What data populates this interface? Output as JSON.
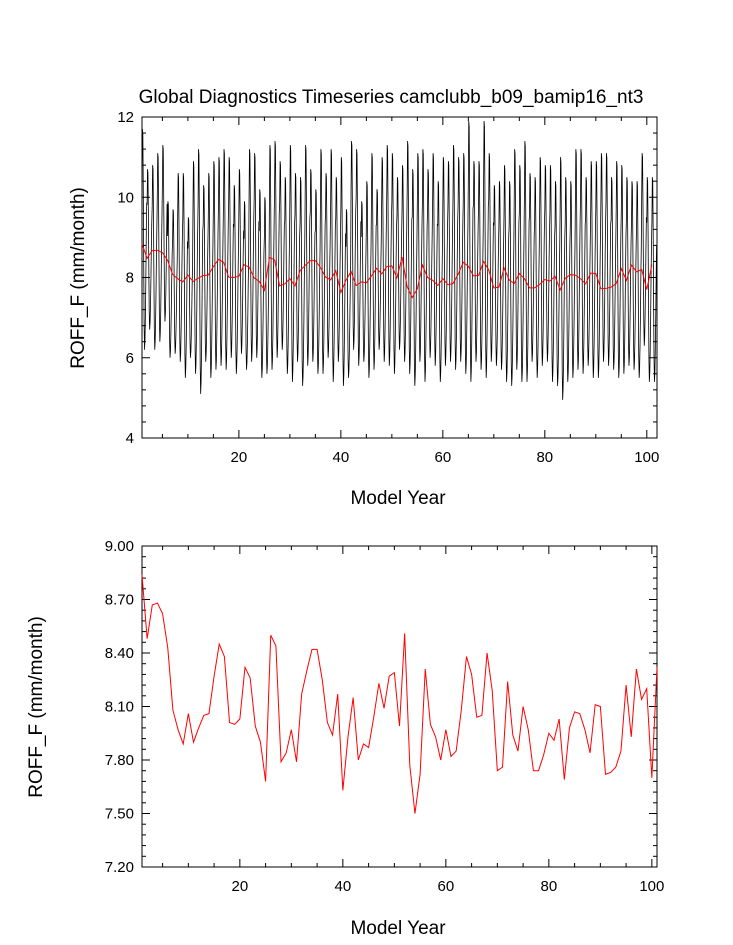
{
  "chart_data": [
    {
      "type": "line",
      "title": "Global Diagnostics Timeseries camclubb_b09_bamip16_nt3",
      "xlabel": "Model Year",
      "ylabel": "ROFF_F (mm/month)",
      "xlim": [
        1,
        102
      ],
      "ylim": [
        4,
        12
      ],
      "xticks": [
        20,
        40,
        60,
        80,
        100
      ],
      "yticks": [
        4,
        6,
        8,
        10,
        12
      ],
      "ytick_labels": [
        "4",
        "6",
        "8",
        "10",
        "12"
      ],
      "monthly_series": {
        "name": "monthly ROFF_F",
        "color": "#000000",
        "seasonal_mean": [
          9.55,
          10.55,
          10.45,
          9.35,
          7.85,
          6.55,
          6.05,
          6.25,
          6.75,
          7.45,
          8.35,
          9.05
        ],
        "annual_peak": [
          11.7,
          10.7,
          10.8,
          11.1,
          11.3,
          9.9,
          9.7,
          10.6,
          10.6,
          9.5,
          10.9,
          11.2,
          10.3,
          10.6,
          10.9,
          11.0,
          11.2,
          11.0,
          10.3,
          10.7,
          9.9,
          11.2,
          11.1,
          10.2,
          10.0,
          11.3,
          11.4,
          10.9,
          10.5,
          11.3,
          10.6,
          10.5,
          11.3,
          10.7,
          10.2,
          11.2,
          10.6,
          11.2,
          10.5,
          11.0,
          9.7,
          11.4,
          11.2,
          9.9,
          10.4,
          11.1,
          10.2,
          11.0,
          11.3,
          11.1,
          10.5,
          10.8,
          11.4,
          10.7,
          11.1,
          11.2,
          10.7,
          11.1,
          10.4,
          11.0,
          10.9,
          11.3,
          11.0,
          11.1,
          11.9,
          10.9,
          10.9,
          11.9,
          11.1,
          10.3,
          10.4,
          10.8,
          10.4,
          11.2,
          10.8,
          11.4,
          10.6,
          10.5,
          11.0,
          10.8,
          10.8,
          10.4,
          11.0,
          10.5,
          10.4,
          11.2,
          11.2,
          10.5,
          10.9,
          10.9,
          11.1,
          11.1,
          10.5,
          10.9,
          10.8,
          10.5,
          10.4,
          10.4,
          11.1,
          10.5,
          10.5
        ],
        "annual_trough": [
          6.2,
          6.7,
          6.2,
          6.4,
          6.9,
          6.0,
          6.1,
          5.9,
          5.5,
          6.0,
          5.6,
          5.1,
          5.9,
          5.5,
          5.7,
          5.8,
          5.7,
          6.0,
          5.6,
          6.1,
          5.7,
          5.9,
          6.0,
          5.5,
          5.6,
          5.7,
          6.0,
          6.2,
          5.6,
          5.4,
          5.9,
          5.3,
          5.8,
          5.9,
          5.6,
          5.6,
          6.0,
          5.4,
          5.9,
          5.3,
          5.5,
          6.2,
          5.8,
          5.9,
          5.5,
          5.7,
          6.2,
          5.9,
          5.8,
          5.6,
          6.2,
          5.9,
          5.6,
          5.3,
          5.9,
          5.4,
          6.0,
          5.8,
          5.4,
          5.8,
          5.9,
          5.7,
          5.9,
          5.6,
          5.4,
          5.9,
          5.7,
          5.5,
          5.9,
          5.8,
          5.7,
          5.4,
          5.3,
          5.7,
          5.4,
          5.4,
          5.9,
          5.5,
          5.8,
          5.9,
          5.4,
          5.3,
          4.95,
          5.4,
          5.5,
          5.7,
          5.6,
          5.8,
          5.5,
          5.5,
          5.9,
          5.8,
          5.7,
          5.5,
          5.6,
          5.8,
          5.7,
          5.5,
          6.3,
          5.4,
          5.4
        ]
      },
      "annual_series_color": "#ff0000"
    },
    {
      "type": "line",
      "title": "",
      "xlabel": "Model Year",
      "ylabel": "ROFF_F (mm/month)",
      "xlim": [
        1,
        101
      ],
      "ylim": [
        7.2,
        9.0
      ],
      "xticks": [
        20,
        40,
        60,
        80,
        100
      ],
      "yticks": [
        7.2,
        7.5,
        7.8,
        8.1,
        8.4,
        8.7,
        9.0
      ],
      "ytick_labels": [
        "7.20",
        "7.50",
        "7.80",
        "8.10",
        "8.40",
        "8.70",
        "9.00"
      ],
      "series": [
        {
          "name": "annual mean ROFF_F",
          "color": "#ff0000",
          "x": [
            1,
            2,
            3,
            4,
            5,
            6,
            7,
            8,
            9,
            10,
            11,
            12,
            13,
            14,
            15,
            16,
            17,
            18,
            19,
            20,
            21,
            22,
            23,
            24,
            25,
            26,
            27,
            28,
            29,
            30,
            31,
            32,
            33,
            34,
            35,
            36,
            37,
            38,
            39,
            40,
            41,
            42,
            43,
            44,
            45,
            46,
            47,
            48,
            49,
            50,
            51,
            52,
            53,
            54,
            55,
            56,
            57,
            58,
            59,
            60,
            61,
            62,
            63,
            64,
            65,
            66,
            67,
            68,
            69,
            70,
            71,
            72,
            73,
            74,
            75,
            76,
            77,
            78,
            79,
            80,
            81,
            82,
            83,
            84,
            85,
            86,
            87,
            88,
            89,
            90,
            91,
            92,
            93,
            94,
            95,
            96,
            97,
            98,
            99,
            100,
            101
          ],
          "values": [
            8.84,
            8.48,
            8.67,
            8.68,
            8.62,
            8.43,
            8.08,
            7.97,
            7.89,
            8.06,
            7.9,
            7.98,
            8.05,
            8.06,
            8.27,
            8.45,
            8.38,
            8.01,
            8.0,
            8.03,
            8.32,
            8.26,
            7.99,
            7.9,
            7.68,
            8.5,
            8.44,
            7.79,
            7.84,
            7.97,
            7.79,
            8.17,
            8.3,
            8.42,
            8.42,
            8.25,
            8.01,
            7.94,
            8.17,
            7.63,
            7.93,
            8.15,
            7.8,
            7.89,
            7.87,
            8.04,
            8.23,
            8.09,
            8.27,
            8.29,
            7.99,
            8.51,
            7.77,
            7.5,
            7.72,
            8.31,
            8.0,
            7.93,
            7.8,
            7.97,
            7.82,
            7.85,
            8.08,
            8.38,
            8.28,
            8.04,
            8.05,
            8.4,
            8.19,
            7.74,
            7.76,
            8.24,
            7.94,
            7.85,
            8.1,
            7.97,
            7.74,
            7.74,
            7.83,
            7.95,
            7.91,
            8.03,
            7.69,
            7.98,
            8.07,
            8.06,
            7.97,
            7.84,
            8.11,
            8.1,
            7.72,
            7.73,
            7.76,
            7.85,
            8.22,
            7.93,
            8.31,
            8.14,
            8.2,
            7.7,
            8.32
          ]
        }
      ]
    }
  ]
}
